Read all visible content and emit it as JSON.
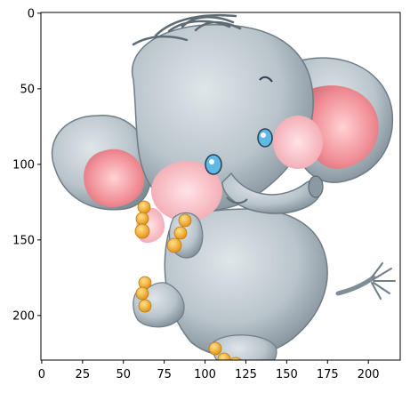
{
  "chart_data": {
    "type": "image",
    "title": "",
    "xlabel": "",
    "ylabel": "",
    "xlim": [
      -0.5,
      219.5
    ],
    "ylim": [
      229.5,
      -0.5
    ],
    "y_axis_inverted": true,
    "x_ticks": [
      0,
      25,
      50,
      75,
      100,
      125,
      150,
      175,
      200
    ],
    "x_tick_labels": [
      "0",
      "25",
      "50",
      "75",
      "100",
      "125",
      "150",
      "175",
      "200"
    ],
    "y_ticks": [
      0,
      50,
      100,
      150,
      200
    ],
    "y_tick_labels": [
      "0",
      "50",
      "100",
      "150",
      "200"
    ],
    "grid": false,
    "legend": "none",
    "image_content": "elephant-cartoon",
    "colors": {
      "elephant_body": "#b9c4cb",
      "elephant_shadow": "#7f8d97",
      "ear_inner": "#f08d94",
      "cheek": "#f6b7bf",
      "toenail": "#f3a827",
      "eye": "#5fb9e6"
    }
  }
}
